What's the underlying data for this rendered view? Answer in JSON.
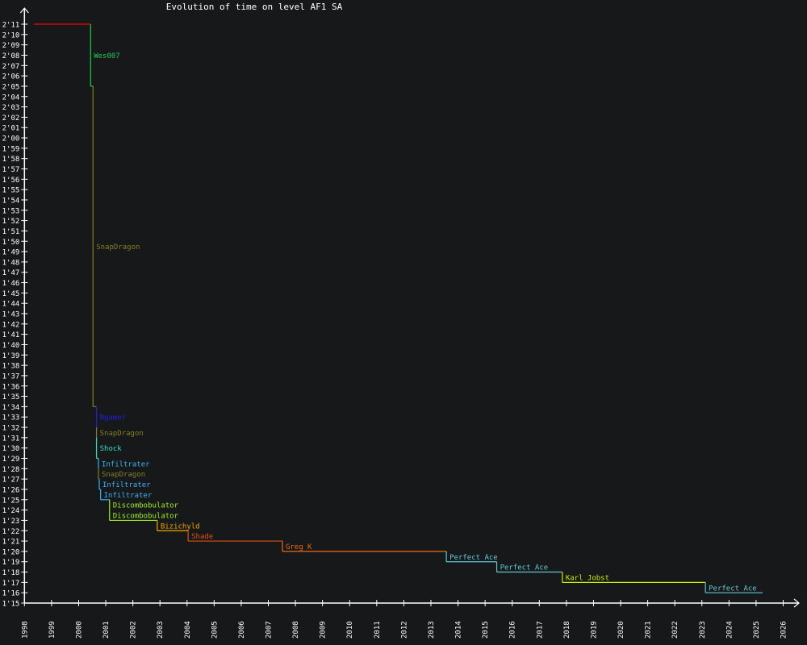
{
  "chart_data": {
    "type": "line",
    "step": true,
    "title": "Evolution of time on level AF1 SA",
    "xlabel": "",
    "ylabel": "",
    "xlim": [
      1998,
      2026
    ],
    "ylim_seconds": [
      75,
      131
    ],
    "x_ticks": [
      "1998",
      "1999",
      "2000",
      "2001",
      "2002",
      "2003",
      "2004",
      "2005",
      "2006",
      "2007",
      "2008",
      "2009",
      "2010",
      "2011",
      "2012",
      "2013",
      "2014",
      "2015",
      "2016",
      "2017",
      "2018",
      "2019",
      "2020",
      "2021",
      "2022",
      "2023",
      "2024",
      "2025",
      "2026"
    ],
    "y_ticks": [
      "1'15",
      "1'16",
      "1'17",
      "1'18",
      "1'19",
      "1'20",
      "1'21",
      "1'22",
      "1'23",
      "1'24",
      "1'25",
      "1'26",
      "1'27",
      "1'28",
      "1'29",
      "1'30",
      "1'31",
      "1'32",
      "1'33",
      "1'34",
      "1'35",
      "1'36",
      "1'37",
      "1'38",
      "1'39",
      "1'40",
      "1'41",
      "1'42",
      "1'43",
      "1'44",
      "1'45",
      "1'46",
      "1'47",
      "1'48",
      "1'49",
      "1'50",
      "1'51",
      "1'52",
      "1'53",
      "1'54",
      "1'55",
      "1'56",
      "1'57",
      "1'58",
      "1'59",
      "2'00",
      "2'01",
      "2'02",
      "2'03",
      "2'04",
      "2'05",
      "2'06",
      "2'07",
      "2'08",
      "2'09",
      "2'10",
      "2'11"
    ],
    "grid": false,
    "background": "#17181a",
    "axis_color": "#ffffff",
    "end_date": 2025.24,
    "records": [
      {
        "date": 1998.35,
        "time": 131,
        "player": "",
        "color": "#ff0000"
      },
      {
        "date": 2000.44,
        "time": 125,
        "player": "Wes007",
        "color": "#22cc55"
      },
      {
        "date": 2000.53,
        "time": 94,
        "player": "SnapDragon",
        "color": "#808020"
      },
      {
        "date": 2000.66,
        "time": 92,
        "player": "Ngamer",
        "color": "#2020e0"
      },
      {
        "date": 2000.66,
        "time": 91,
        "player": "SnapDragon",
        "color": "#808020"
      },
      {
        "date": 2000.66,
        "time": 89,
        "player": "Shock",
        "color": "#30e0c0"
      },
      {
        "date": 2000.73,
        "time": 88,
        "player": "Infiltrater",
        "color": "#40b0f0"
      },
      {
        "date": 2000.73,
        "time": 87,
        "player": "SnapDragon",
        "color": "#808020"
      },
      {
        "date": 2000.76,
        "time": 86,
        "player": "Infiltrater",
        "color": "#40b0f0"
      },
      {
        "date": 2000.81,
        "time": 85,
        "player": "Infiltrater",
        "color": "#40b0f0"
      },
      {
        "date": 2001.14,
        "time": 84,
        "player": "Discombobulator",
        "color": "#a0f020"
      },
      {
        "date": 2001.14,
        "time": 83,
        "player": "Discombobulator",
        "color": "#a0f020"
      },
      {
        "date": 2002.9,
        "time": 82,
        "player": "Bizichyld",
        "color": "#f0a800"
      },
      {
        "date": 2004.04,
        "time": 81,
        "player": "Shade",
        "color": "#e05010"
      },
      {
        "date": 2007.52,
        "time": 80,
        "player": "Greg K",
        "color": "#f06818"
      },
      {
        "date": 2013.57,
        "time": 79,
        "player": "Perfect Ace",
        "color": "#60c8d0"
      },
      {
        "date": 2015.43,
        "time": 78,
        "player": "Perfect Ace",
        "color": "#60c8d0"
      },
      {
        "date": 2017.85,
        "time": 77,
        "player": "Karl Jobst",
        "color": "#c8f000"
      },
      {
        "date": 2023.13,
        "time": 76,
        "player": "Perfect Ace",
        "color": "#60c8d0"
      }
    ]
  }
}
